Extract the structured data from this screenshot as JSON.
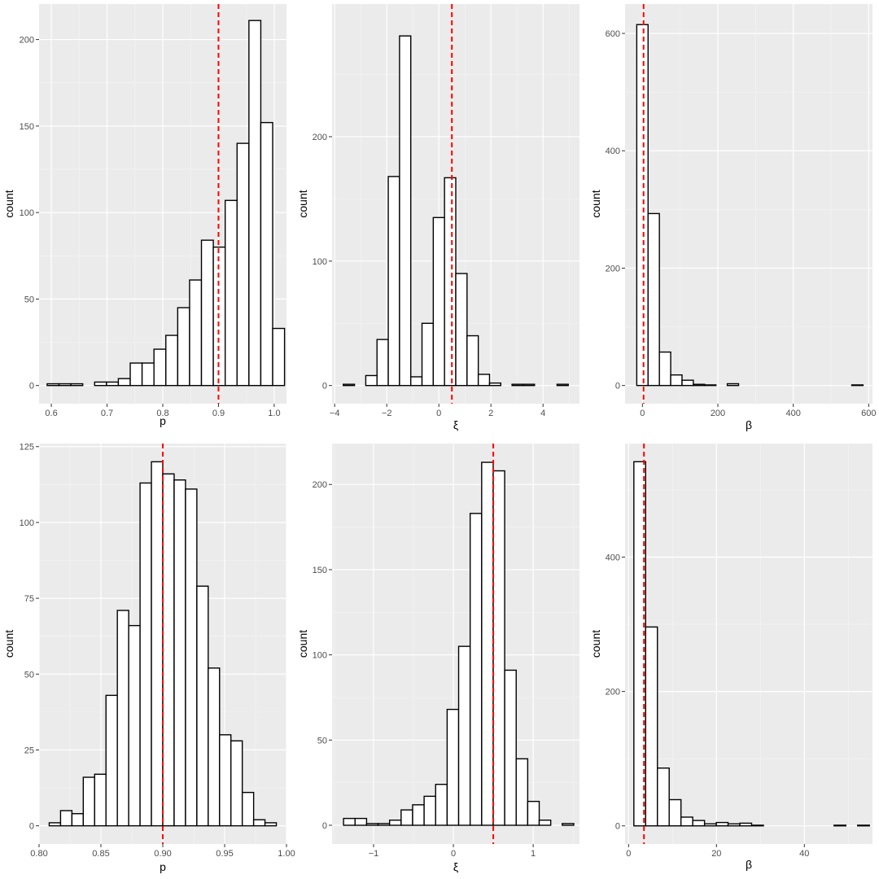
{
  "colors": {
    "panel_background": "#ebebeb",
    "grid_major": "#ffffff",
    "grid_minor": "#f5f5f5",
    "bar_fill": "#ffffff",
    "bar_stroke": "#000000",
    "reference_line": "#ff0000"
  },
  "chart_data": [
    {
      "type": "bar",
      "xlabel": "p",
      "ylabel": "count",
      "xlim": [
        0.578,
        1.022
      ],
      "ylim": [
        -10.5,
        220.5
      ],
      "xticks": [
        0.6,
        0.7,
        0.8,
        0.9,
        1.0
      ],
      "xtick_labels": [
        "0.6",
        "0.7",
        "0.8",
        "0.9",
        "1.0"
      ],
      "yticks": [
        0,
        50,
        100,
        150,
        200
      ],
      "ytick_labels": [
        "0",
        "50",
        "100",
        "150",
        "200"
      ],
      "bin_start": 0.5925,
      "bin_width": 0.0213,
      "values": [
        1,
        1,
        1,
        0,
        2,
        2,
        4,
        13,
        13,
        21,
        29,
        45,
        61,
        84,
        80,
        107,
        140,
        211,
        152,
        33
      ],
      "reference_line": 0.9,
      "grid": true
    },
    {
      "type": "bar",
      "xlabel": "ξ",
      "ylabel": "count",
      "xlim": [
        -4.1,
        5.4
      ],
      "ylim": [
        -14.6,
        306.6
      ],
      "xticks": [
        -4,
        -2,
        0,
        2,
        4
      ],
      "xtick_labels": [
        "−4",
        "−2",
        "0",
        "2",
        "4"
      ],
      "yticks": [
        0,
        100,
        200
      ],
      "ytick_labels": [
        "0",
        "100",
        "200"
      ],
      "bin_start": -3.67,
      "bin_width": 0.432,
      "values": [
        1,
        0,
        8,
        37,
        168,
        281,
        7,
        50,
        135,
        167,
        90,
        40,
        9,
        2,
        0,
        1,
        1,
        0,
        0,
        1
      ],
      "reference_line": 0.5,
      "grid": true
    },
    {
      "type": "bar",
      "xlabel": "β",
      "ylabel": "count",
      "xlim": [
        -46,
        610
      ],
      "ylim": [
        -31,
        650
      ],
      "xticks": [
        0,
        200,
        400,
        600
      ],
      "xtick_labels": [
        "0",
        "200",
        "400",
        "600"
      ],
      "yticks": [
        0,
        200,
        400,
        600
      ],
      "ytick_labels": [
        "0",
        "200",
        "400",
        "600"
      ],
      "bin_start": -15,
      "bin_width": 30,
      "values": [
        615,
        293,
        57,
        18,
        9,
        2,
        1,
        0,
        3,
        0,
        0,
        0,
        0,
        0,
        0,
        0,
        0,
        0,
        0,
        1
      ],
      "reference_line": 3,
      "grid": true
    },
    {
      "type": "bar",
      "xlabel": "p",
      "ylabel": "count",
      "xlim": [
        0.8,
        1.0
      ],
      "ylim": [
        -6,
        126
      ],
      "xticks": [
        0.8,
        0.85,
        0.9,
        0.95,
        1.0
      ],
      "xtick_labels": [
        "0.80",
        "0.85",
        "0.90",
        "0.95",
        "1.00"
      ],
      "yticks": [
        0,
        25,
        50,
        75,
        100,
        125
      ],
      "ytick_labels": [
        "0",
        "25",
        "50",
        "75",
        "100",
        "125"
      ],
      "bin_start": 0.8082,
      "bin_width": 0.00918,
      "values": [
        1,
        5,
        4,
        16,
        17,
        43,
        71,
        66,
        113,
        120,
        116,
        114,
        111,
        79,
        52,
        30,
        28,
        11,
        2,
        1
      ],
      "reference_line": 0.9,
      "grid": true
    },
    {
      "type": "bar",
      "xlabel": "ξ",
      "ylabel": "count",
      "xlim": [
        -1.52,
        1.58
      ],
      "ylim": [
        -11,
        224
      ],
      "xticks": [
        -1,
        0,
        1
      ],
      "xtick_labels": [
        "−1",
        "0",
        "1"
      ],
      "yticks": [
        0,
        50,
        100,
        150,
        200
      ],
      "ytick_labels": [
        "0",
        "50",
        "100",
        "150",
        "200"
      ],
      "bin_start": -1.376,
      "bin_width": 0.1442,
      "values": [
        4,
        4,
        1,
        1,
        3,
        9,
        12,
        17,
        24,
        68,
        105,
        183,
        213,
        208,
        91,
        39,
        14,
        3,
        0,
        1
      ],
      "reference_line": 0.5,
      "grid": true
    },
    {
      "type": "bar",
      "xlabel": "β",
      "ylabel": "count",
      "xlim": [
        -0.8,
        55.5
      ],
      "ylim": [
        -27,
        569
      ],
      "xticks": [
        0,
        20,
        40
      ],
      "xtick_labels": [
        "0",
        "20",
        "40"
      ],
      "yticks": [
        0,
        200,
        400
      ],
      "ytick_labels": [
        "0",
        "200",
        "400"
      ],
      "bin_start": 1.2,
      "bin_width": 2.68,
      "values": [
        542,
        296,
        86,
        39,
        13,
        8,
        3,
        5,
        3,
        4,
        1,
        0,
        0,
        0,
        0,
        0,
        0,
        1,
        0,
        1
      ],
      "reference_line": 3.5,
      "grid": true
    }
  ]
}
